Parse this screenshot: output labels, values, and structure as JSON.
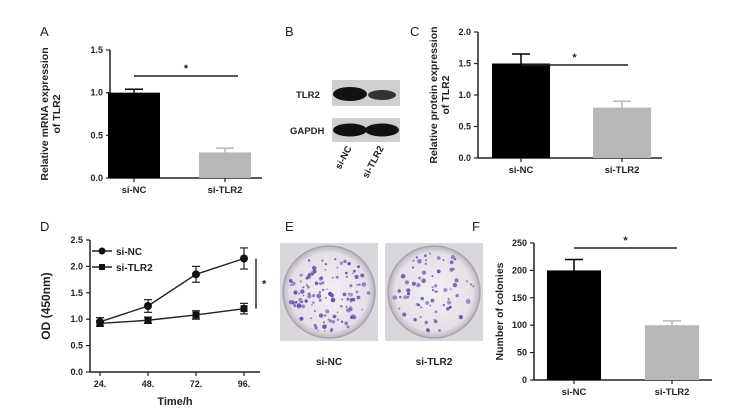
{
  "panels": {
    "A": {
      "letter": "A"
    },
    "B": {
      "letter": "B"
    },
    "C": {
      "letter": "C"
    },
    "D": {
      "letter": "D"
    },
    "E": {
      "letter": "E"
    },
    "F": {
      "letter": "F"
    }
  },
  "blot": {
    "bands": [
      "TLR2",
      "GAPDH"
    ],
    "lanes": [
      "si-NC",
      "si-TLR2"
    ]
  },
  "colony_dishes": {
    "labels": [
      "si-NC",
      "si-TLR2"
    ],
    "colony_color": "#6a4fb0",
    "dish_color": "#e9e6ec"
  },
  "colors": {
    "si_NC": "#000000",
    "si_TLR2": "#b7b7b7"
  },
  "chart_data": [
    {
      "id": "A",
      "type": "bar",
      "categories": [
        "si-NC",
        "si-TLR2"
      ],
      "values": [
        1.0,
        0.3
      ],
      "errors": [
        0.04,
        0.05
      ],
      "ylabel": "Relative mRNA expression of TLR2",
      "ylim": [
        0,
        1.5
      ],
      "yticks": [
        "0.0",
        "0.5",
        "1.0",
        "1.5"
      ],
      "significance": "*"
    },
    {
      "id": "C",
      "type": "bar",
      "categories": [
        "si-NC",
        "si-TLR2"
      ],
      "values": [
        1.5,
        0.8
      ],
      "errors": [
        0.15,
        0.1
      ],
      "ylabel": "Relative protein expression of TLR2",
      "ylim": [
        0,
        2.0
      ],
      "yticks": [
        "0.0",
        "0.5",
        "1.0",
        "1.5",
        "2.0"
      ],
      "significance": "*"
    },
    {
      "id": "D",
      "type": "line",
      "x": [
        "24.",
        "48.",
        "72.",
        "96."
      ],
      "series": [
        {
          "name": "si-NC",
          "values": [
            0.95,
            1.25,
            1.85,
            2.15
          ],
          "errors": [
            0.08,
            0.12,
            0.15,
            0.2
          ],
          "marker": "circle"
        },
        {
          "name": "si-TLR2",
          "values": [
            0.92,
            0.98,
            1.08,
            1.2
          ],
          "errors": [
            0.05,
            0.06,
            0.08,
            0.1
          ],
          "marker": "square"
        }
      ],
      "xlabel": "Time/h",
      "ylabel": "OD (450nm)",
      "ylim": [
        0,
        2.5
      ],
      "yticks": [
        "0.0",
        "0.5",
        "1.0",
        "1.5",
        "2.0",
        "2.5"
      ],
      "legend": "top-left",
      "significance": "*"
    },
    {
      "id": "F",
      "type": "bar",
      "categories": [
        "si-NC",
        "si-TLR2"
      ],
      "values": [
        200,
        100
      ],
      "errors": [
        20,
        8
      ],
      "ylabel": "Number of colonies",
      "ylim": [
        0,
        250
      ],
      "yticks": [
        "0",
        "50",
        "100",
        "150",
        "200",
        "250"
      ],
      "significance": "*"
    }
  ]
}
